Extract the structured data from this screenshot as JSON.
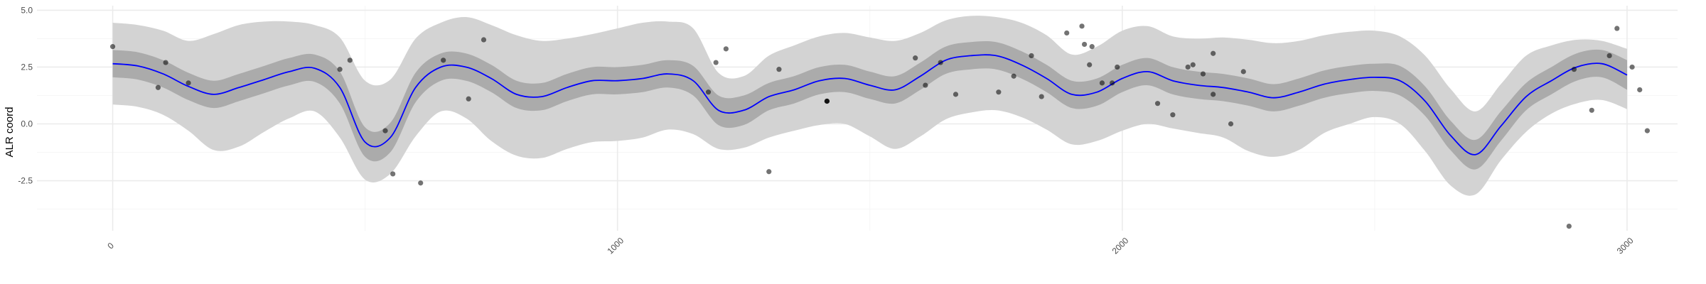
{
  "chart_data": {
    "type": "line",
    "title": "",
    "xlabel": "",
    "ylabel": "ALR coord",
    "xlim": [
      -150,
      3100
    ],
    "ylim": [
      -4.7,
      5.2
    ],
    "x_breaks": [
      0,
      1000,
      2000,
      3000
    ],
    "x_tick_labels": [
      "0",
      "1000",
      "2000",
      "3000"
    ],
    "y_breaks": [
      -2.5,
      0,
      2.5,
      5
    ],
    "y_tick_labels": [
      "-2.5",
      "0.0",
      "2.5",
      "5.0"
    ],
    "y_minor_breaks": [
      -3.75,
      -1.25,
      1.25,
      3.75
    ],
    "x_minor_breaks": [
      500,
      1500,
      2500
    ],
    "grid": true,
    "legend": "none",
    "colors": {
      "mean_line": "#0000ff",
      "inner_band": "#ababab",
      "outer_band": "#d3d3d3",
      "points": "#000000"
    },
    "series": [
      {
        "kind": "smooth",
        "x": [
          0,
          50,
          100,
          150,
          200,
          250,
          300,
          350,
          400,
          450,
          500,
          550,
          600,
          650,
          700,
          750,
          800,
          850,
          900,
          950,
          1000,
          1050,
          1100,
          1150,
          1200,
          1250,
          1300,
          1350,
          1400,
          1450,
          1500,
          1550,
          1600,
          1650,
          1700,
          1750,
          1800,
          1850,
          1900,
          1950,
          2000,
          2050,
          2100,
          2150,
          2200,
          2250,
          2300,
          2350,
          2400,
          2450,
          2500,
          2550,
          2600,
          2650,
          2700,
          2750,
          2800,
          2850,
          2900,
          2950,
          3000
        ],
        "mean": [
          2.65,
          2.55,
          2.2,
          1.65,
          1.3,
          1.6,
          1.95,
          2.3,
          2.45,
          1.6,
          -0.8,
          -0.6,
          1.6,
          2.5,
          2.5,
          2.0,
          1.3,
          1.2,
          1.6,
          1.9,
          1.9,
          2.0,
          2.2,
          1.9,
          0.6,
          0.6,
          1.2,
          1.5,
          1.9,
          2.0,
          1.7,
          1.5,
          2.1,
          2.8,
          3.0,
          3.0,
          2.6,
          2.0,
          1.3,
          1.4,
          2.0,
          2.3,
          1.9,
          1.7,
          1.6,
          1.4,
          1.15,
          1.4,
          1.75,
          1.95,
          2.05,
          1.9,
          1.0,
          -0.5,
          -1.35,
          -0.1,
          1.2,
          1.9,
          2.5,
          2.65,
          2.15
        ],
        "inner_lower": [
          2.05,
          1.95,
          1.6,
          1.05,
          0.7,
          1.0,
          1.35,
          1.7,
          1.85,
          0.9,
          -1.45,
          -1.25,
          0.95,
          1.9,
          1.9,
          1.4,
          0.7,
          0.6,
          1.0,
          1.3,
          1.3,
          1.4,
          1.6,
          1.25,
          -0.05,
          -0.05,
          0.6,
          0.9,
          1.3,
          1.4,
          1.1,
          0.9,
          1.5,
          2.2,
          2.4,
          2.4,
          2.0,
          1.4,
          0.7,
          0.8,
          1.4,
          1.7,
          1.3,
          1.1,
          1.0,
          0.8,
          0.55,
          0.8,
          1.15,
          1.35,
          1.45,
          1.25,
          0.35,
          -1.15,
          -2.0,
          -0.75,
          0.6,
          1.3,
          1.9,
          2.05,
          1.5
        ],
        "inner_upper": [
          3.25,
          3.15,
          2.8,
          2.25,
          1.9,
          2.2,
          2.55,
          2.9,
          3.05,
          2.3,
          -0.15,
          0.05,
          2.25,
          3.1,
          3.1,
          2.6,
          1.9,
          1.8,
          2.2,
          2.5,
          2.5,
          2.6,
          2.8,
          2.55,
          1.25,
          1.25,
          1.8,
          2.1,
          2.5,
          2.6,
          2.3,
          2.1,
          2.7,
          3.4,
          3.6,
          3.6,
          3.2,
          2.6,
          1.9,
          2.0,
          2.6,
          2.9,
          2.5,
          2.3,
          2.2,
          2.0,
          1.75,
          2.0,
          2.35,
          2.55,
          2.65,
          2.55,
          1.65,
          0.15,
          -0.7,
          0.55,
          1.8,
          2.5,
          3.1,
          3.25,
          2.8
        ],
        "outer_lower": [
          0.85,
          0.75,
          0.4,
          -0.3,
          -1.15,
          -1.0,
          -0.35,
          0.25,
          0.55,
          -0.6,
          -2.45,
          -2.2,
          -0.55,
          0.55,
          0.25,
          -0.75,
          -1.4,
          -1.5,
          -1.1,
          -0.8,
          -0.75,
          -0.6,
          -0.25,
          -0.45,
          -1.1,
          -1.05,
          -0.6,
          -0.3,
          -0.05,
          0.0,
          -0.55,
          -1.1,
          -0.55,
          0.2,
          0.5,
          0.6,
          0.3,
          -0.25,
          -0.9,
          -0.75,
          -0.3,
          0.0,
          -0.2,
          -0.4,
          -0.6,
          -1.2,
          -1.45,
          -1.15,
          -0.4,
          0.0,
          0.3,
          0.0,
          -1.2,
          -2.7,
          -3.1,
          -1.6,
          -0.35,
          0.45,
          0.9,
          1.05,
          0.65
        ],
        "outer_upper": [
          4.45,
          4.35,
          4.1,
          3.65,
          3.95,
          4.35,
          4.5,
          4.5,
          4.35,
          3.8,
          1.9,
          1.95,
          3.75,
          4.45,
          4.7,
          4.35,
          3.9,
          3.65,
          3.75,
          3.95,
          4.2,
          4.45,
          4.5,
          4.2,
          2.25,
          2.1,
          3.0,
          3.45,
          3.85,
          4.0,
          3.8,
          3.65,
          4.0,
          4.55,
          4.75,
          4.7,
          4.45,
          3.9,
          3.05,
          3.4,
          4.1,
          4.3,
          3.85,
          3.75,
          3.8,
          3.7,
          3.55,
          3.65,
          3.9,
          4.05,
          4.1,
          3.85,
          3.0,
          1.55,
          0.55,
          1.75,
          3.0,
          3.45,
          3.7,
          3.65,
          3.3
        ]
      },
      {
        "kind": "points",
        "x": [
          0,
          90,
          105,
          150,
          450,
          470,
          540,
          555,
          610,
          655,
          705,
          735,
          1180,
          1195,
          1215,
          1300,
          1320,
          1415,
          1415,
          1415,
          1590,
          1610,
          1640,
          1670,
          1755,
          1785,
          1820,
          1840,
          1890,
          1920,
          1925,
          1935,
          1940,
          1960,
          1980,
          1990,
          2070,
          2100,
          2130,
          2140,
          2160,
          2180,
          2180,
          2215,
          2240,
          2885,
          2895,
          2930,
          2965,
          2980,
          3010,
          3025,
          3040
        ],
        "y": [
          3.4,
          1.6,
          2.7,
          1.8,
          2.4,
          2.8,
          -0.3,
          -2.2,
          -2.6,
          2.8,
          1.1,
          3.7,
          1.4,
          2.7,
          3.3,
          -2.1,
          2.4,
          1.0,
          1.0,
          1.0,
          2.9,
          1.7,
          2.7,
          1.3,
          1.4,
          2.1,
          3.0,
          1.2,
          4.0,
          4.3,
          3.5,
          2.6,
          3.4,
          1.8,
          1.8,
          2.5,
          0.9,
          0.4,
          2.5,
          2.6,
          2.2,
          3.1,
          1.3,
          0.0,
          2.3,
          -4.5,
          2.4,
          0.6,
          3.0,
          4.2,
          2.5,
          1.5,
          -0.3
        ]
      }
    ]
  }
}
